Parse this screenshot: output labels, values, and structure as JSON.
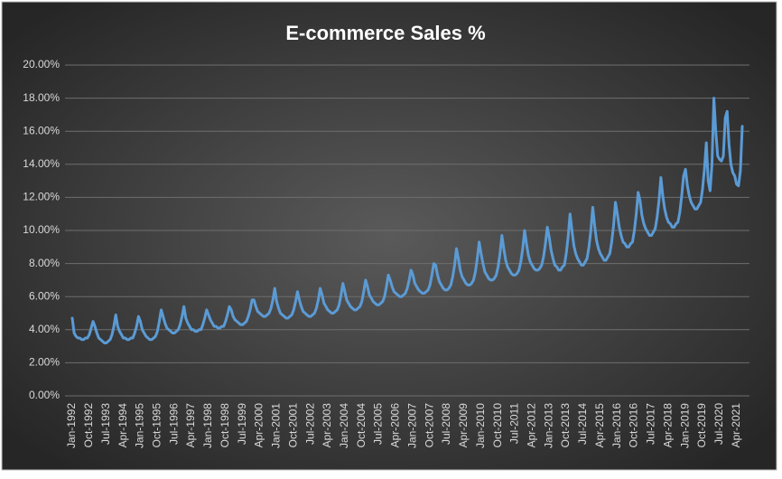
{
  "chart_data": {
    "type": "line",
    "title": "E-commerce Sales %",
    "color": "#5b9bd5",
    "grid": true,
    "ylim": [
      0,
      20
    ],
    "yticks": [
      {
        "value": 0,
        "label": "0.00%"
      },
      {
        "value": 2,
        "label": "2.00%"
      },
      {
        "value": 4,
        "label": "4.00%"
      },
      {
        "value": 6,
        "label": "6.00%"
      },
      {
        "value": 8,
        "label": "8.00%"
      },
      {
        "value": 10,
        "label": "10.00%"
      },
      {
        "value": 12,
        "label": "12.00%"
      },
      {
        "value": 14,
        "label": "14.00%"
      },
      {
        "value": 16,
        "label": "16.00%"
      },
      {
        "value": 18,
        "label": "18.00%"
      },
      {
        "value": 20,
        "label": "20.00%"
      }
    ],
    "categories": [
      "Jan-1992",
      null,
      null,
      null,
      null,
      null,
      null,
      null,
      null,
      "Oct-1992",
      null,
      null,
      null,
      null,
      null,
      null,
      null,
      null,
      "Jul-1993",
      null,
      null,
      null,
      null,
      null,
      null,
      null,
      null,
      "Apr-1994",
      null,
      null,
      null,
      null,
      null,
      null,
      null,
      null,
      "Jan-1995",
      null,
      null,
      null,
      null,
      null,
      null,
      null,
      null,
      "Oct-1995",
      null,
      null,
      null,
      null,
      null,
      null,
      null,
      null,
      "Jul-1996",
      null,
      null,
      null,
      null,
      null,
      null,
      null,
      null,
      "Apr-1997",
      null,
      null,
      null,
      null,
      null,
      null,
      null,
      null,
      "Jan-1998",
      null,
      null,
      null,
      null,
      null,
      null,
      null,
      null,
      "Oct-1998",
      null,
      null,
      null,
      null,
      null,
      null,
      null,
      null,
      "Jul-1999",
      null,
      null,
      null,
      null,
      null,
      null,
      null,
      null,
      "Apr-2000",
      null,
      null,
      null,
      null,
      null,
      null,
      null,
      null,
      "Jan-2001",
      null,
      null,
      null,
      null,
      null,
      null,
      null,
      null,
      "Oct-2001",
      null,
      null,
      null,
      null,
      null,
      null,
      null,
      null,
      "Jul-2002",
      null,
      null,
      null,
      null,
      null,
      null,
      null,
      null,
      "Apr-2003",
      null,
      null,
      null,
      null,
      null,
      null,
      null,
      null,
      "Jan-2004",
      null,
      null,
      null,
      null,
      null,
      null,
      null,
      null,
      "Oct-2004",
      null,
      null,
      null,
      null,
      null,
      null,
      null,
      null,
      "Jul-2005",
      null,
      null,
      null,
      null,
      null,
      null,
      null,
      null,
      "Apr-2006",
      null,
      null,
      null,
      null,
      null,
      null,
      null,
      null,
      "Jan-2007",
      null,
      null,
      null,
      null,
      null,
      null,
      null,
      null,
      "Oct-2007",
      null,
      null,
      null,
      null,
      null,
      null,
      null,
      null,
      "Jul-2008",
      null,
      null,
      null,
      null,
      null,
      null,
      null,
      null,
      "Apr-2009",
      null,
      null,
      null,
      null,
      null,
      null,
      null,
      null,
      "Jan-2010",
      null,
      null,
      null,
      null,
      null,
      null,
      null,
      null,
      "Oct-2010",
      null,
      null,
      null,
      null,
      null,
      null,
      null,
      null,
      "Jul-2011",
      null,
      null,
      null,
      null,
      null,
      null,
      null,
      null,
      "Apr-2012",
      null,
      null,
      null,
      null,
      null,
      null,
      null,
      null,
      "Jan-2013",
      null,
      null,
      null,
      null,
      null,
      null,
      null,
      null,
      "Oct-2013",
      null,
      null,
      null,
      null,
      null,
      null,
      null,
      null,
      "Jul-2014",
      null,
      null,
      null,
      null,
      null,
      null,
      null,
      null,
      "Apr-2015",
      null,
      null,
      null,
      null,
      null,
      null,
      null,
      null,
      "Jan-2016",
      null,
      null,
      null,
      null,
      null,
      null,
      null,
      null,
      "Oct-2016",
      null,
      null,
      null,
      null,
      null,
      null,
      null,
      null,
      "Jul-2017",
      null,
      null,
      null,
      null,
      null,
      null,
      null,
      null,
      "Apr-2018",
      null,
      null,
      null,
      null,
      null,
      null,
      null,
      null,
      "Jan-2019",
      null,
      null,
      null,
      null,
      null,
      null,
      null,
      null,
      "Oct-2019",
      null,
      null,
      null,
      null,
      null,
      null,
      null,
      null,
      "Jul-2020",
      null,
      null,
      null,
      null,
      null,
      null,
      null,
      null,
      "Apr-2021",
      null,
      null,
      null
    ],
    "values": [
      4.7,
      3.8,
      3.6,
      3.5,
      3.5,
      3.4,
      3.4,
      3.5,
      3.5,
      3.7,
      4.1,
      4.5,
      4.2,
      3.8,
      3.5,
      3.4,
      3.3,
      3.2,
      3.2,
      3.3,
      3.4,
      3.7,
      4.2,
      4.9,
      4.2,
      3.9,
      3.7,
      3.5,
      3.5,
      3.4,
      3.4,
      3.5,
      3.5,
      3.8,
      4.2,
      4.8,
      4.5,
      4.0,
      3.8,
      3.6,
      3.5,
      3.4,
      3.4,
      3.5,
      3.6,
      3.9,
      4.5,
      5.2,
      4.8,
      4.4,
      4.1,
      4.0,
      3.9,
      3.8,
      3.8,
      3.9,
      4.0,
      4.3,
      4.8,
      5.4,
      4.7,
      4.4,
      4.2,
      4.0,
      4.0,
      3.9,
      3.9,
      4.0,
      4.0,
      4.3,
      4.7,
      5.2,
      4.9,
      4.6,
      4.4,
      4.2,
      4.2,
      4.1,
      4.1,
      4.2,
      4.2,
      4.5,
      4.9,
      5.4,
      5.2,
      4.8,
      4.6,
      4.5,
      4.4,
      4.3,
      4.3,
      4.4,
      4.5,
      4.8,
      5.2,
      5.8,
      5.8,
      5.4,
      5.1,
      5.0,
      4.9,
      4.8,
      4.8,
      4.9,
      5.0,
      5.3,
      5.8,
      6.5,
      5.7,
      5.3,
      5.0,
      4.9,
      4.8,
      4.7,
      4.7,
      4.8,
      4.9,
      5.2,
      5.7,
      6.3,
      5.8,
      5.4,
      5.1,
      5.0,
      4.9,
      4.8,
      4.8,
      4.9,
      5.0,
      5.3,
      5.8,
      6.5,
      6.1,
      5.6,
      5.4,
      5.2,
      5.1,
      5.0,
      5.0,
      5.1,
      5.2,
      5.5,
      6.1,
      6.8,
      6.3,
      5.8,
      5.6,
      5.4,
      5.3,
      5.2,
      5.2,
      5.3,
      5.4,
      5.7,
      6.3,
      7.0,
      6.6,
      6.1,
      5.9,
      5.7,
      5.6,
      5.5,
      5.5,
      5.6,
      5.7,
      6.0,
      6.6,
      7.3,
      7.0,
      6.6,
      6.3,
      6.2,
      6.1,
      6.0,
      6.0,
      6.1,
      6.2,
      6.5,
      7.0,
      7.6,
      7.3,
      6.8,
      6.6,
      6.4,
      6.3,
      6.2,
      6.2,
      6.3,
      6.4,
      6.7,
      7.3,
      8.0,
      7.9,
      7.3,
      6.9,
      6.7,
      6.5,
      6.4,
      6.4,
      6.5,
      6.7,
      7.2,
      7.9,
      8.9,
      8.3,
      7.6,
      7.2,
      7.0,
      6.8,
      6.7,
      6.7,
      6.8,
      7.0,
      7.5,
      8.3,
      9.3,
      8.6,
      8.0,
      7.5,
      7.3,
      7.1,
      7.0,
      7.0,
      7.1,
      7.3,
      7.8,
      8.6,
      9.7,
      8.9,
      8.2,
      7.8,
      7.6,
      7.4,
      7.3,
      7.3,
      7.4,
      7.6,
      8.1,
      8.9,
      10.0,
      9.2,
      8.5,
      8.1,
      7.9,
      7.7,
      7.6,
      7.6,
      7.7,
      7.9,
      8.4,
      9.2,
      10.2,
      9.6,
      8.8,
      8.3,
      7.9,
      7.8,
      7.6,
      7.6,
      7.8,
      7.9,
      8.6,
      9.6,
      11.0,
      10.0,
      9.1,
      8.6,
      8.3,
      8.1,
      7.9,
      7.9,
      8.1,
      8.3,
      9.0,
      10.0,
      11.4,
      10.3,
      9.4,
      8.9,
      8.6,
      8.4,
      8.2,
      8.2,
      8.4,
      8.6,
      9.3,
      10.3,
      11.7,
      11.0,
      10.2,
      9.7,
      9.3,
      9.2,
      9.0,
      9.0,
      9.2,
      9.3,
      10.0,
      11.0,
      12.3,
      11.8,
      10.9,
      10.4,
      10.1,
      9.9,
      9.7,
      9.7,
      9.9,
      10.1,
      10.8,
      11.8,
      13.2,
      12.1,
      11.3,
      10.8,
      10.5,
      10.4,
      10.2,
      10.2,
      10.4,
      10.5,
      11.1,
      12.1,
      13.3,
      13.7,
      12.7,
      12.1,
      11.7,
      11.5,
      11.3,
      11.3,
      11.5,
      11.7,
      12.5,
      13.7,
      15.3,
      13.0,
      12.4,
      14.0,
      18.0,
      16.0,
      14.5,
      14.3,
      14.2,
      14.5,
      16.8,
      17.2,
      15.2,
      14.0,
      13.5,
      13.3,
      12.8,
      12.7,
      13.6,
      16.3
    ]
  }
}
